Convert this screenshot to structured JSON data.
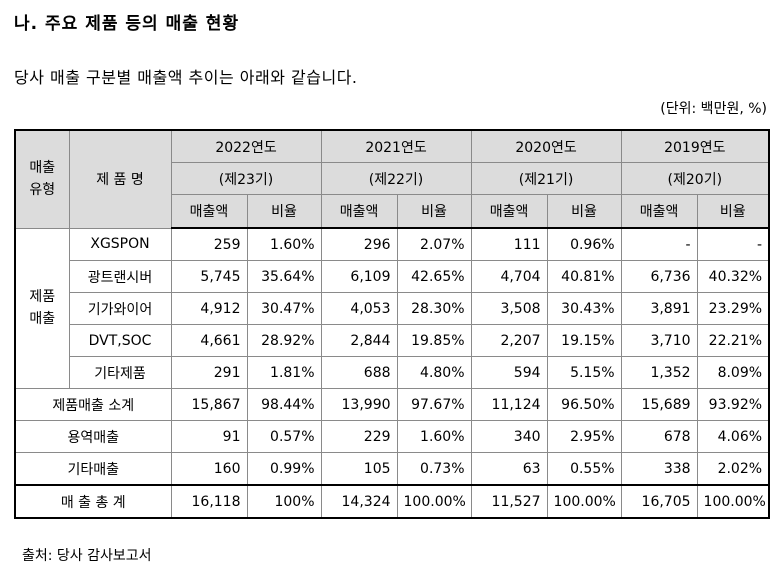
{
  "heading": "나. 주요 제품 등의 매출 현황",
  "intro": "당사 매출 구분별 매출액 추이는 아래와 같습니다.",
  "unit": "(단위: 백만원, %)",
  "table": {
    "header_type": "매출\n유형",
    "header_product": "제 품 명",
    "years": [
      {
        "label": "2022연도",
        "term": "(제23기)"
      },
      {
        "label": "2021연도",
        "term": "(제22기)"
      },
      {
        "label": "2020연도",
        "term": "(제21기)"
      },
      {
        "label": "2019연도",
        "term": "(제20기)"
      }
    ],
    "col_sales": "매출액",
    "col_ratio": "비율",
    "product_group": "제품\n매출",
    "products": [
      {
        "name": "XGSPON",
        "vals": [
          "259",
          "1.60%",
          "296",
          "2.07%",
          "111",
          "0.96%",
          "-",
          "-"
        ]
      },
      {
        "name": "광트랜시버",
        "vals": [
          "5,745",
          "35.64%",
          "6,109",
          "42.65%",
          "4,704",
          "40.81%",
          "6,736",
          "40.32%"
        ]
      },
      {
        "name": "기가와이어",
        "vals": [
          "4,912",
          "30.47%",
          "4,053",
          "28.30%",
          "3,508",
          "30.43%",
          "3,891",
          "23.29%"
        ]
      },
      {
        "name": "DVT,SOC",
        "vals": [
          "4,661",
          "28.92%",
          "2,844",
          "19.85%",
          "2,207",
          "19.15%",
          "3,710",
          "22.21%"
        ]
      },
      {
        "name": "기타제품",
        "vals": [
          "291",
          "1.81%",
          "688",
          "4.80%",
          "594",
          "5.15%",
          "1,352",
          "8.09%"
        ]
      }
    ],
    "summary": [
      {
        "name": "제품매출 소계",
        "vals": [
          "15,867",
          "98.44%",
          "13,990",
          "97.67%",
          "11,124",
          "96.50%",
          "15,689",
          "93.92%"
        ]
      },
      {
        "name": "용역매출",
        "vals": [
          "91",
          "0.57%",
          "229",
          "1.60%",
          "340",
          "2.95%",
          "678",
          "4.06%"
        ]
      },
      {
        "name": "기타매출",
        "vals": [
          "160",
          "0.99%",
          "105",
          "0.73%",
          "63",
          "0.55%",
          "338",
          "2.02%"
        ]
      }
    ],
    "total": {
      "name": "매 출 총 계",
      "vals": [
        "16,118",
        "100%",
        "14,324",
        "100.00%",
        "11,527",
        "100.00%",
        "16,705",
        "100.00%"
      ]
    }
  },
  "source": "출처: 당사 감사보고서"
}
